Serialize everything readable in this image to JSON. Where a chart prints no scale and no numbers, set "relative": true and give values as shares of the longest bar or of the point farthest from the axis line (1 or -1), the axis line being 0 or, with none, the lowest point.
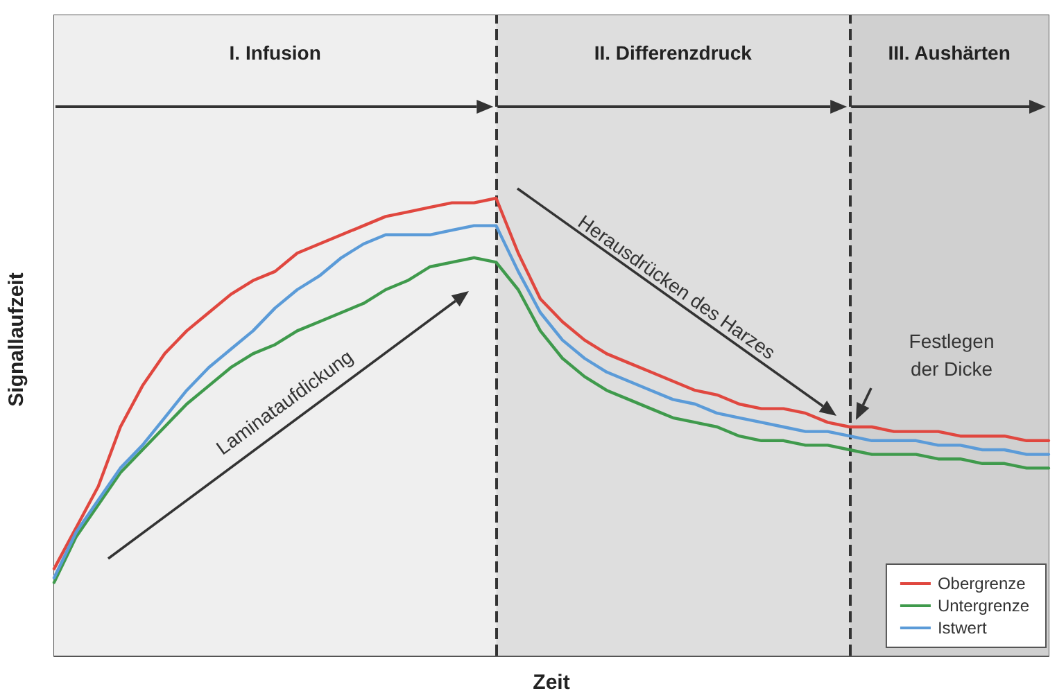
{
  "chart_data": {
    "type": "line",
    "relative": true,
    "xlabel": "Zeit",
    "ylabel": "Signallaufzeit",
    "categories": [
      null,
      null,
      null,
      null,
      null,
      null,
      null,
      null,
      null,
      null,
      null,
      null,
      null,
      null,
      null,
      null,
      null,
      null,
      null,
      null,
      null,
      null,
      null,
      null,
      null,
      null,
      null,
      null,
      null,
      null,
      null,
      null,
      null,
      null,
      null,
      null,
      null,
      null,
      null,
      null,
      null,
      null,
      null,
      null,
      null,
      null
    ],
    "tick_labels": false,
    "grid": false,
    "legend": "bottom right",
    "marker": "none",
    "line_style": "solid",
    "series": [
      {
        "name": "Obergrenze",
        "color": "#e0473f",
        "values": [
          0.19,
          0.28,
          0.37,
          0.5,
          0.59,
          0.66,
          0.71,
          0.75,
          0.79,
          0.82,
          0.84,
          0.88,
          0.9,
          0.92,
          0.94,
          0.96,
          0.97,
          0.98,
          0.99,
          0.99,
          1.0,
          0.88,
          0.78,
          0.73,
          0.69,
          0.66,
          0.64,
          0.62,
          0.6,
          0.58,
          0.57,
          0.55,
          0.54,
          0.54,
          0.53,
          0.51,
          0.5,
          0.5,
          0.49,
          0.49,
          0.49,
          0.48,
          0.48,
          0.48,
          0.47,
          0.47
        ]
      },
      {
        "name": "Untergrenze",
        "color": "#3f9a4c",
        "values": [
          0.16,
          0.26,
          0.33,
          0.4,
          0.45,
          0.5,
          0.55,
          0.59,
          0.63,
          0.66,
          0.68,
          0.71,
          0.73,
          0.75,
          0.77,
          0.8,
          0.82,
          0.85,
          0.86,
          0.87,
          0.86,
          0.8,
          0.71,
          0.65,
          0.61,
          0.58,
          0.56,
          0.54,
          0.52,
          0.51,
          0.5,
          0.48,
          0.47,
          0.47,
          0.46,
          0.46,
          0.45,
          0.44,
          0.44,
          0.44,
          0.43,
          0.43,
          0.42,
          0.42,
          0.41,
          0.41
        ]
      },
      {
        "name": "Istwert",
        "color": "#5b9bd8",
        "values": [
          0.17,
          0.27,
          0.34,
          0.41,
          0.46,
          0.52,
          0.58,
          0.63,
          0.67,
          0.71,
          0.76,
          0.8,
          0.83,
          0.87,
          0.9,
          0.92,
          0.92,
          0.92,
          0.93,
          0.94,
          0.94,
          0.84,
          0.75,
          0.69,
          0.65,
          0.62,
          0.6,
          0.58,
          0.56,
          0.55,
          0.53,
          0.52,
          0.51,
          0.5,
          0.49,
          0.49,
          0.48,
          0.47,
          0.47,
          0.47,
          0.46,
          0.46,
          0.45,
          0.45,
          0.44,
          0.44
        ]
      }
    ],
    "annotations": [
      "I. Infusion",
      "II. Differenzdruck",
      "III. Aushärten",
      "Laminataufdickung",
      "Herausdrücken des Harzes",
      "Festlegen\nder Dicke"
    ]
  }
}
